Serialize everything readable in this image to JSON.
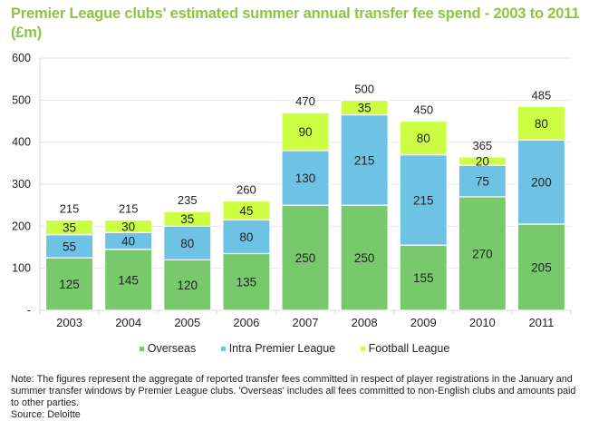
{
  "title": "Premier League clubs' estimated summer annual transfer fee spend - 2003 to 2011 (£m)",
  "chart_data": {
    "type": "bar",
    "stacked": true,
    "title": "Premier League clubs' estimated summer annual transfer fee spend - 2003 to 2011 (£m)",
    "xlabel": "",
    "ylabel": "",
    "ylim": [
      0,
      600
    ],
    "yticks": [
      0,
      100,
      200,
      300,
      400,
      500,
      600
    ],
    "ytick_labels": [
      "-",
      "100",
      "200",
      "300",
      "400",
      "500",
      "600"
    ],
    "grid": true,
    "legend_position": "bottom",
    "categories": [
      "2003",
      "2004",
      "2005",
      "2006",
      "2007",
      "2008",
      "2009",
      "2010",
      "2011"
    ],
    "series": [
      {
        "name": "Overseas",
        "color": "#77c96b",
        "values": [
          125,
          145,
          120,
          135,
          250,
          250,
          155,
          270,
          205
        ]
      },
      {
        "name": "Intra Premier League",
        "color": "#6ec3e4",
        "values": [
          55,
          40,
          80,
          80,
          130,
          215,
          215,
          75,
          200
        ]
      },
      {
        "name": "Football League",
        "color": "#ccff44",
        "values": [
          35,
          30,
          35,
          45,
          90,
          35,
          80,
          20,
          80
        ]
      }
    ],
    "totals": [
      215,
      215,
      235,
      260,
      470,
      500,
      450,
      365,
      485
    ]
  },
  "legend": {
    "items": [
      {
        "label": "Overseas",
        "color": "#77c96b"
      },
      {
        "label": "Intra Premier League",
        "color": "#6ec3e4"
      },
      {
        "label": "Football League",
        "color": "#ccff44"
      }
    ]
  },
  "note": {
    "text": "Note:  The figures represent the aggregate of reported transfer fees committed in respect of player registrations in the January and summer transfer windows by Premier League clubs.  'Overseas' includes all fees committed to non-English clubs and amounts paid to other parties.",
    "source": "Source: Deloitte"
  }
}
